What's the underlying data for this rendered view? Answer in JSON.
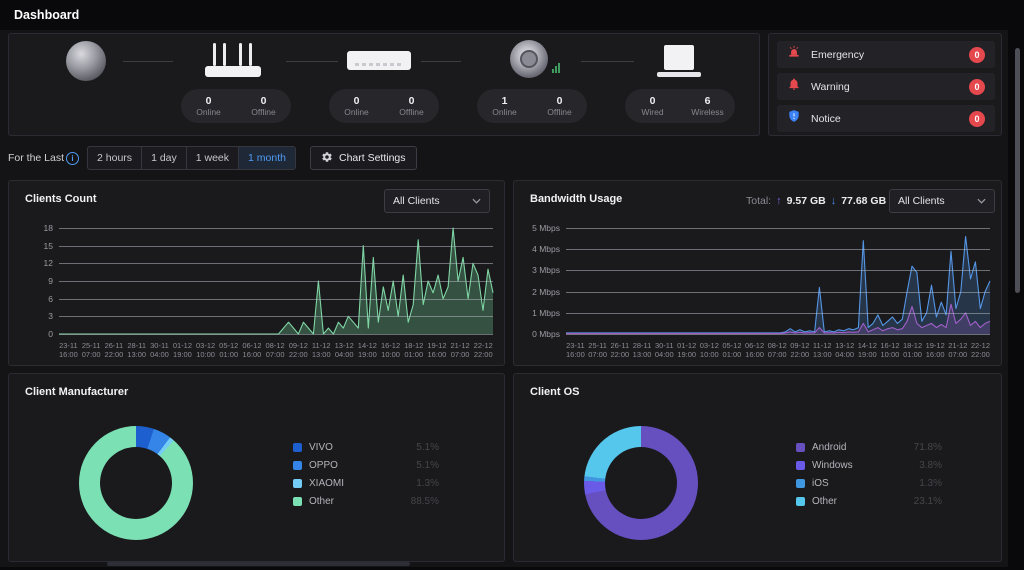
{
  "topbar": {
    "title": "Dashboard"
  },
  "devices": {
    "groups": [
      {
        "name": "internet"
      },
      {
        "name": "router",
        "stats": [
          {
            "value": "0",
            "label": "Online"
          },
          {
            "value": "0",
            "label": "Offline"
          }
        ]
      },
      {
        "name": "switch",
        "stats": [
          {
            "value": "0",
            "label": "Online"
          },
          {
            "value": "0",
            "label": "Offline"
          }
        ]
      },
      {
        "name": "access-point",
        "stats": [
          {
            "value": "1",
            "label": "Online"
          },
          {
            "value": "0",
            "label": "Offline"
          }
        ]
      },
      {
        "name": "clients",
        "stats": [
          {
            "value": "0",
            "label": "Wired"
          },
          {
            "value": "6",
            "label": "Wireless"
          }
        ]
      }
    ]
  },
  "alerts": {
    "badge_color": "#e5484d",
    "items": [
      {
        "label": "Emergency",
        "count": "0",
        "icon": "siren-icon",
        "icon_color": "#e5484d"
      },
      {
        "label": "Warning",
        "count": "0",
        "icon": "bell-icon",
        "icon_color": "#e5484d"
      },
      {
        "label": "Notice",
        "count": "0",
        "icon": "shield-icon",
        "icon_color": "#3b82f6"
      }
    ]
  },
  "filters": {
    "label": "For the Last",
    "options": [
      "2 hours",
      "1 day",
      "1 week",
      "1 month"
    ],
    "selected": "1 month",
    "chart_settings_label": "Chart Settings",
    "accent": "#4f9cf5"
  },
  "dropdowns": {
    "clients_count": "All Clients",
    "bandwidth": "All Clients"
  },
  "bandwidth_totals": {
    "label": "Total:",
    "upload": "9.57 GB",
    "download": "77.68 GB",
    "up_arrow": "↑",
    "down_arrow": "↓",
    "up_color": "#7c5cd6",
    "down_color": "#4a8fe8"
  },
  "chart_data": [
    {
      "type": "area",
      "title": "Clients Count",
      "ylim": [
        0,
        18
      ],
      "yticks": [
        "18",
        "15",
        "12",
        "9",
        "6",
        "3",
        "0"
      ],
      "grid": true,
      "legend_position": "none",
      "x_labels": [
        [
          "23-11",
          "16:00"
        ],
        [
          "25-11",
          "07:00"
        ],
        [
          "26-11",
          "22:00"
        ],
        [
          "28-11",
          "13:00"
        ],
        [
          "30-11",
          "04:00"
        ],
        [
          "01-12",
          "19:00"
        ],
        [
          "03-12",
          "10:00"
        ],
        [
          "05-12",
          "01:00"
        ],
        [
          "06-12",
          "16:00"
        ],
        [
          "08-12",
          "07:00"
        ],
        [
          "09-12",
          "22:00"
        ],
        [
          "11-12",
          "13:00"
        ],
        [
          "13-12",
          "04:00"
        ],
        [
          "14-12",
          "19:00"
        ],
        [
          "16-12",
          "10:00"
        ],
        [
          "18-12",
          "01:00"
        ],
        [
          "19-12",
          "16:00"
        ],
        [
          "21-12",
          "07:00"
        ],
        [
          "22-12",
          "22:00"
        ]
      ],
      "series": [
        {
          "name": "Clients",
          "color": "#7fd6a4",
          "fill": "rgba(111,207,151,0.30)",
          "values": [
            0,
            0,
            0,
            0,
            0,
            0,
            0,
            0,
            0,
            0,
            0,
            0,
            0,
            0,
            0,
            0,
            0,
            0,
            0,
            0,
            0,
            0,
            0,
            0,
            0,
            0,
            0,
            0,
            0,
            0,
            0,
            0,
            0,
            0,
            0,
            0,
            0,
            0,
            0,
            0,
            0,
            0,
            0,
            0,
            0,
            1,
            2,
            1,
            0,
            2,
            1,
            0,
            9,
            0,
            1,
            0,
            2,
            1,
            3,
            2,
            1,
            15,
            1,
            13,
            2,
            8,
            4,
            9,
            3,
            10,
            2,
            5,
            16,
            5,
            9,
            7,
            10,
            6,
            8,
            18,
            9,
            13,
            6,
            12,
            10,
            4,
            11,
            7
          ]
        }
      ]
    },
    {
      "type": "line",
      "title": "Bandwidth Usage",
      "ylim": [
        0,
        5
      ],
      "yticks": [
        "5 Mbps",
        "4 Mbps",
        "3 Mbps",
        "2 Mbps",
        "1 Mbps",
        "0 Mbps"
      ],
      "grid": true,
      "legend_position": "none",
      "x_labels": [
        [
          "23-11",
          "16:00"
        ],
        [
          "25-11",
          "07:00"
        ],
        [
          "26-11",
          "22:00"
        ],
        [
          "28-11",
          "13:00"
        ],
        [
          "30-11",
          "04:00"
        ],
        [
          "01-12",
          "19:00"
        ],
        [
          "03-12",
          "10:00"
        ],
        [
          "05-12",
          "01:00"
        ],
        [
          "06-12",
          "16:00"
        ],
        [
          "08-12",
          "07:00"
        ],
        [
          "09-12",
          "22:00"
        ],
        [
          "11-12",
          "13:00"
        ],
        [
          "13-12",
          "04:00"
        ],
        [
          "14-12",
          "19:00"
        ],
        [
          "16-12",
          "10:00"
        ],
        [
          "18-12",
          "01:00"
        ],
        [
          "19-12",
          "16:00"
        ],
        [
          "21-12",
          "07:00"
        ],
        [
          "22-12",
          "22:00"
        ]
      ],
      "series": [
        {
          "name": "Download",
          "color": "#5596e6",
          "fill": "rgba(85,150,230,0.22)",
          "values": [
            0.05,
            0.05,
            0.05,
            0.05,
            0.05,
            0.05,
            0.05,
            0.05,
            0.05,
            0.05,
            0.05,
            0.05,
            0.05,
            0.05,
            0.05,
            0.05,
            0.05,
            0.05,
            0.05,
            0.05,
            0.05,
            0.05,
            0.05,
            0.05,
            0.05,
            0.05,
            0.05,
            0.05,
            0.05,
            0.05,
            0.05,
            0.05,
            0.05,
            0.05,
            0.05,
            0.05,
            0.05,
            0.05,
            0.05,
            0.05,
            0.05,
            0.05,
            0.05,
            0.05,
            0.05,
            0.1,
            0.25,
            0.1,
            0.2,
            0.1,
            0.15,
            0.1,
            2.2,
            0.1,
            0.15,
            0.1,
            0.2,
            0.15,
            0.25,
            0.2,
            0.3,
            4.4,
            0.3,
            0.5,
            0.9,
            0.4,
            0.6,
            0.8,
            0.5,
            0.7,
            2.0,
            3.2,
            2.9,
            0.6,
            1.0,
            2.3,
            0.8,
            1.5,
            0.9,
            3.9,
            1.2,
            2.0,
            4.6,
            2.6,
            3.4,
            1.2,
            2.0,
            2.5
          ]
        },
        {
          "name": "Upload",
          "color": "#a05fc9",
          "fill": "rgba(160,95,201,0.22)",
          "values": [
            0.02,
            0.02,
            0.02,
            0.02,
            0.02,
            0.02,
            0.02,
            0.02,
            0.02,
            0.02,
            0.02,
            0.02,
            0.02,
            0.02,
            0.02,
            0.02,
            0.02,
            0.02,
            0.02,
            0.02,
            0.02,
            0.02,
            0.02,
            0.02,
            0.02,
            0.02,
            0.02,
            0.02,
            0.02,
            0.02,
            0.02,
            0.02,
            0.02,
            0.02,
            0.02,
            0.02,
            0.02,
            0.02,
            0.02,
            0.02,
            0.02,
            0.02,
            0.02,
            0.02,
            0.02,
            0.05,
            0.1,
            0.05,
            0.08,
            0.05,
            0.06,
            0.05,
            0.3,
            0.05,
            0.06,
            0.05,
            0.08,
            0.06,
            0.1,
            0.08,
            0.1,
            0.5,
            0.1,
            0.2,
            0.3,
            0.15,
            0.25,
            0.3,
            0.2,
            0.25,
            0.6,
            1.3,
            0.5,
            0.3,
            0.4,
            0.5,
            0.3,
            0.45,
            0.3,
            1.4,
            0.5,
            0.7,
            1.0,
            0.4,
            0.6,
            0.3,
            0.5,
            0.6
          ]
        }
      ]
    },
    {
      "type": "pie",
      "title": "Client Manufacturer",
      "legend_position": "right",
      "slices": [
        {
          "label": "VIVO",
          "value": 5.1,
          "display": "5.1%",
          "color": "#1e5fd0"
        },
        {
          "label": "OPPO",
          "value": 5.1,
          "display": "5.1%",
          "color": "#3585e8"
        },
        {
          "label": "XIAOMI",
          "value": 1.3,
          "display": "1.3%",
          "color": "#74cdf2"
        },
        {
          "label": "Other",
          "value": 88.5,
          "display": "88.5%",
          "color": "#7be0b4"
        }
      ]
    },
    {
      "type": "pie",
      "title": "Client OS",
      "legend_position": "right",
      "slices": [
        {
          "label": "Android",
          "value": 71.8,
          "display": "71.8%",
          "color": "#6650c0"
        },
        {
          "label": "Windows",
          "value": 3.8,
          "display": "3.8%",
          "color": "#6a5ae8"
        },
        {
          "label": "iOS",
          "value": 1.3,
          "display": "1.3%",
          "color": "#3f97e0"
        },
        {
          "label": "Other",
          "value": 23.1,
          "display": "23.1%",
          "color": "#55c6ec"
        }
      ]
    }
  ]
}
